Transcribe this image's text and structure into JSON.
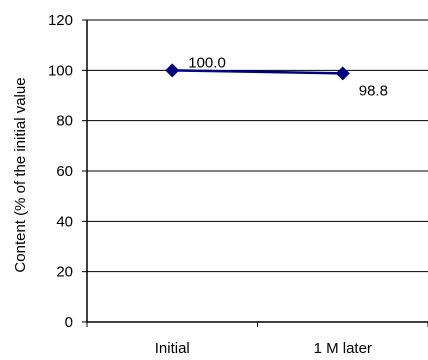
{
  "chart_data": {
    "type": "line",
    "title": "",
    "xlabel": "",
    "ylabel": "Content (% of the initial value",
    "categories": [
      "Initial",
      "1 M later"
    ],
    "series": [
      {
        "values": [
          100.0,
          98.8
        ],
        "labels": [
          "100.0",
          "98.8"
        ],
        "color": "#000080",
        "marker": "diamond"
      }
    ],
    "ylim": [
      0,
      120
    ],
    "yticks": [
      0,
      20,
      40,
      60,
      80,
      100,
      120
    ],
    "ytick_labels": [
      "0",
      "20",
      "40",
      "60",
      "80",
      "100",
      "120"
    ],
    "grid": true,
    "legend": "none"
  }
}
